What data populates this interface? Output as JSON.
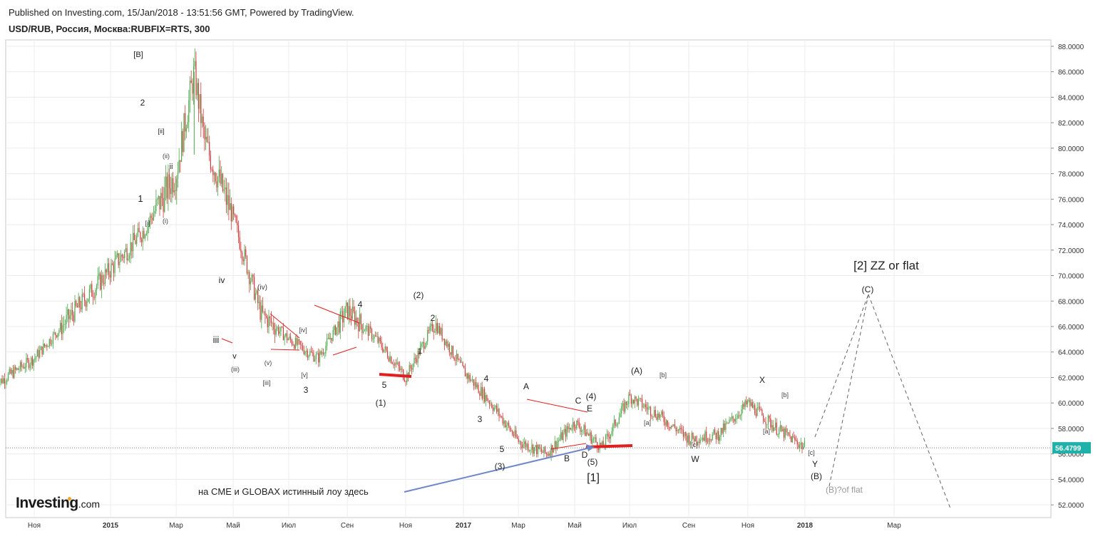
{
  "header": {
    "published": "Published on Investing.com, 15/Jan/2018 - 13:51:56 GMT, Powered by TradingView.",
    "symbol": "USD/RUB, Россия, Москва:RUBFIX=RTS, 300"
  },
  "logo": {
    "brand": "Investing",
    "suffix": ".com"
  },
  "colors": {
    "candle_up": "#4aa84a",
    "candle_down": "#d23b3b",
    "annotation_red": "#e02020",
    "arrow_blue": "#6f86c8",
    "projection": "#666666",
    "price_tag": "#20b2aa"
  },
  "chart_data": {
    "type": "candlestick",
    "title": "USD/RUB, Россия, Москва:RUBFIX=RTS, 300",
    "ylim": [
      51,
      88.5
    ],
    "y_ticks": [
      "88.0000",
      "86.0000",
      "84.0000",
      "82.0000",
      "80.0000",
      "78.0000",
      "76.0000",
      "74.0000",
      "72.0000",
      "70.0000",
      "68.0000",
      "66.0000",
      "64.0000",
      "62.0000",
      "60.0000",
      "58.0000",
      "56.0000",
      "54.0000",
      "52.0000"
    ],
    "x_ticks": [
      "Ноя",
      "2015",
      "Мар",
      "Май",
      "Июл",
      "Сен",
      "Ноя",
      "2017",
      "Мар",
      "Май",
      "Июл",
      "Сен",
      "Ноя",
      "2018",
      "Мар"
    ],
    "last_price": "56.4799",
    "price_path": [
      {
        "date": "2014-10",
        "value": 61.5
      },
      {
        "date": "2014-11",
        "value": 63.5
      },
      {
        "date": "2014-12",
        "value": 67.0
      },
      {
        "date": "2015-01",
        "value": 70.5
      },
      {
        "date": "2015-02",
        "value": 73.5
      },
      {
        "date": "2015-03",
        "value": 78.0
      },
      {
        "date": "2015-03-20",
        "value": 86.0
      },
      {
        "date": "2015-04",
        "value": 80.5
      },
      {
        "date": "2015-05",
        "value": 74.5
      },
      {
        "date": "2015-06",
        "value": 67.0
      },
      {
        "date": "2015-07",
        "value": 65.0
      },
      {
        "date": "2015-08",
        "value": 63.5
      },
      {
        "date": "2015-09",
        "value": 67.3
      },
      {
        "date": "2015-10",
        "value": 65.0
      },
      {
        "date": "2015-11",
        "value": 62.0
      },
      {
        "date": "2015-12",
        "value": 66.3
      },
      {
        "date": "2016-01",
        "value": 62.5
      },
      {
        "date": "2016-02",
        "value": 60.0
      },
      {
        "date": "2016-03",
        "value": 57.0
      },
      {
        "date": "2016-04",
        "value": 56.0
      },
      {
        "date": "2016-05",
        "value": 58.5
      },
      {
        "date": "2016-06",
        "value": 56.5
      },
      {
        "date": "2016-07",
        "value": 60.5
      },
      {
        "date": "2016-08",
        "value": 59.0
      },
      {
        "date": "2016-09",
        "value": 57.2
      },
      {
        "date": "2016-10",
        "value": 57.5
      },
      {
        "date": "2016-11",
        "value": 60.0
      },
      {
        "date": "2016-12",
        "value": 58.0
      },
      {
        "date": "2017-01",
        "value": 56.5
      }
    ],
    "projections": [
      {
        "from": "current",
        "to": "(C)",
        "style": "dashed"
      },
      {
        "from": "(B)?of flat",
        "to": "(C)",
        "style": "dashed"
      },
      {
        "from": "(C)",
        "to": "lower",
        "style": "dashed"
      }
    ],
    "grid": true
  },
  "wave_labels": [
    "[B]",
    "2",
    "[ii]",
    "(ii)",
    "ii",
    "1",
    "[i]",
    "(i)",
    "iv",
    "(iv)",
    "iii",
    "v",
    "(iii)",
    "(v)",
    "[iii]",
    "[iv]",
    "[v]",
    "3",
    "4",
    "(2)",
    "2",
    "1",
    "5",
    "(1)",
    "4",
    "3",
    "5",
    "(3)",
    "A",
    "C",
    "(4)",
    "E",
    "B",
    "D",
    "(5)",
    "[1]",
    "(A)",
    "[b]",
    "[a]",
    "[c]",
    "W",
    "X",
    "[b]",
    "[a]",
    "[c]",
    "Y",
    "(B)",
    "(C)"
  ],
  "annotations": {
    "scenario": "[2] ZZ or flat",
    "alt": "(B)?of flat",
    "note": "на CME и GLOBAX истинный лоу здесь"
  }
}
